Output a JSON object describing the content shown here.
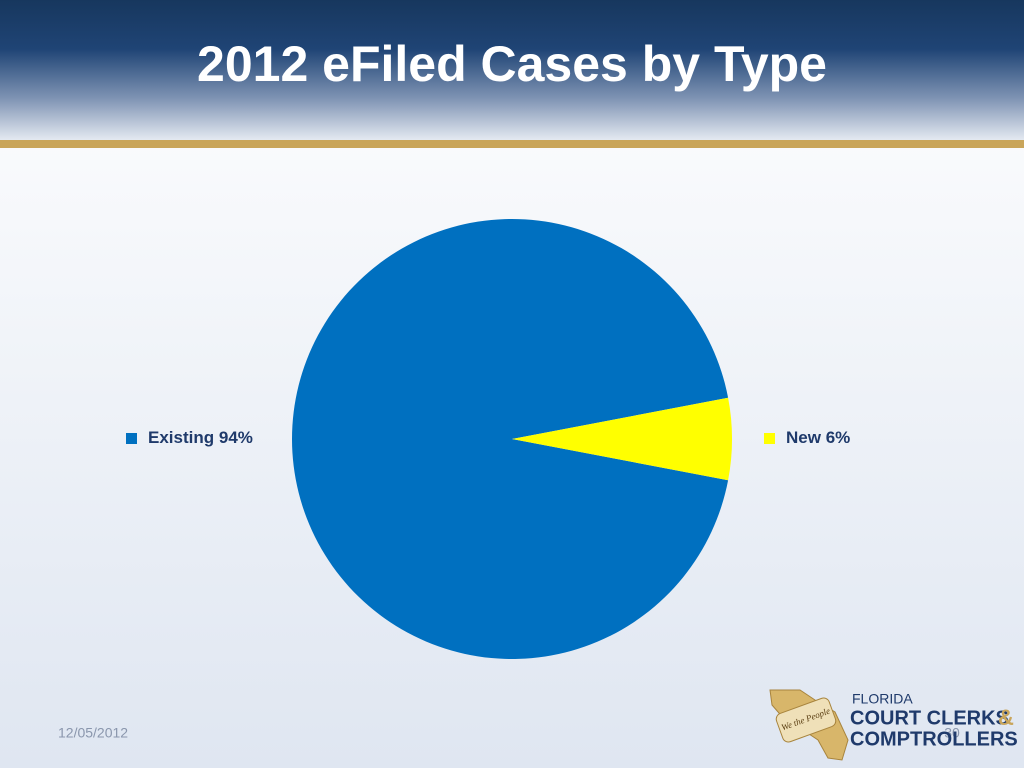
{
  "chart_data": {
    "type": "pie",
    "title": "2012 eFiled Cases by Type",
    "categories": [
      "Existing",
      "New"
    ],
    "values": [
      94,
      6
    ],
    "value_labels": [
      "94%",
      "6%"
    ],
    "colors": [
      "#0070c0",
      "#ffff00"
    ]
  },
  "footer": {
    "date": "12/05/2012",
    "slide_number": "30"
  },
  "logo": {
    "line1": "FLORIDA",
    "line2": "COURT CLERKS",
    "ampersand": "&",
    "line3": "COMPTROLLERS",
    "seal": "We the People"
  }
}
